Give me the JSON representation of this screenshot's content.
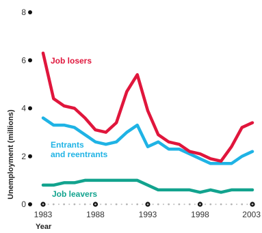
{
  "chart_data": {
    "type": "line",
    "xlabel": "Year",
    "ylabel": "Unemployment (millions)",
    "ylim": [
      0,
      8
    ],
    "xlim": [
      1983,
      2003
    ],
    "y_ticks": [
      "0",
      "2",
      "4",
      "6",
      "8"
    ],
    "x_ticks": [
      "1983",
      "1988",
      "1993",
      "1998",
      "2003"
    ],
    "grid": false,
    "x": [
      1983,
      1984,
      1985,
      1986,
      1987,
      1988,
      1989,
      1990,
      1991,
      1992,
      1993,
      1994,
      1995,
      1996,
      1997,
      1998,
      1999,
      2000,
      2001,
      2002,
      2003
    ],
    "series": [
      {
        "name": "Job losers",
        "color": "#e0163c",
        "values": [
          6.3,
          4.4,
          4.1,
          4.0,
          3.6,
          3.1,
          3.0,
          3.4,
          4.7,
          5.4,
          3.9,
          2.9,
          2.6,
          2.5,
          2.2,
          2.1,
          1.9,
          1.8,
          2.4,
          3.2,
          3.4
        ]
      },
      {
        "name": "Entrants\nand reentrants",
        "color": "#1fb3e5",
        "values": [
          3.6,
          3.3,
          3.3,
          3.2,
          2.9,
          2.6,
          2.5,
          2.6,
          3.0,
          3.3,
          2.4,
          2.6,
          2.3,
          2.3,
          2.1,
          1.9,
          1.7,
          1.7,
          1.7,
          2.0,
          2.2
        ]
      },
      {
        "name": "Job leavers",
        "color": "#12a38e",
        "values": [
          0.8,
          0.8,
          0.9,
          0.9,
          1.0,
          1.0,
          1.0,
          1.0,
          1.0,
          1.0,
          0.8,
          0.6,
          0.6,
          0.6,
          0.6,
          0.5,
          0.6,
          0.5,
          0.6,
          0.6,
          0.6
        ]
      }
    ]
  }
}
